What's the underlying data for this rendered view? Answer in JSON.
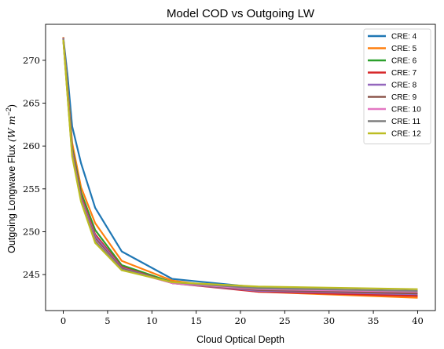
{
  "chart_data": {
    "type": "line",
    "title": "Model COD vs Outgoing LW",
    "xlabel": "Cloud Optical Depth",
    "ylabel": "Outgoing Longwave Flux (W m^-2)",
    "ylabel_unit": "(W m",
    "ylabel_exp": "−2",
    "ylabel_prefix": "Outgoing Longwave Flux ",
    "xlim": [
      -2,
      42
    ],
    "ylim": [
      240.8,
      274.2
    ],
    "xticks": [
      0,
      5,
      10,
      15,
      20,
      25,
      30,
      35,
      40
    ],
    "yticks": [
      245,
      250,
      255,
      260,
      265,
      270
    ],
    "grid": false,
    "legend_position": "top-right",
    "x": [
      0,
      0.5,
      1,
      2,
      3.6,
      6.6,
      12.3,
      22,
      40
    ],
    "series": [
      {
        "name": "CRE: 4",
        "color": "#1f77b4",
        "values": [
          272.7,
          268.0,
          262.3,
          258.0,
          252.8,
          247.7,
          244.5,
          243.5,
          243.0
        ]
      },
      {
        "name": "CRE: 5",
        "color": "#ff7f0e",
        "values": [
          272.7,
          266.6,
          260.4,
          255.2,
          251.0,
          246.6,
          244.3,
          243.0,
          242.3
        ]
      },
      {
        "name": "CRE: 6",
        "color": "#2ca02c",
        "values": [
          272.6,
          266.2,
          259.8,
          254.6,
          250.2,
          246.1,
          244.1,
          243.2,
          242.6
        ]
      },
      {
        "name": "CRE: 7",
        "color": "#d62728",
        "values": [
          272.6,
          266.0,
          259.5,
          254.2,
          249.7,
          245.9,
          244.0,
          243.0,
          242.5
        ]
      },
      {
        "name": "CRE: 8",
        "color": "#9467bd",
        "values": [
          272.6,
          265.9,
          259.4,
          254.0,
          249.5,
          245.8,
          244.0,
          243.1,
          242.7
        ]
      },
      {
        "name": "CRE: 9",
        "color": "#8c564b",
        "values": [
          272.5,
          265.8,
          259.2,
          253.9,
          249.2,
          245.7,
          244.0,
          243.2,
          242.8
        ]
      },
      {
        "name": "CRE: 10",
        "color": "#e377c2",
        "values": [
          272.5,
          265.7,
          259.1,
          253.8,
          249.0,
          245.6,
          244.0,
          243.3,
          243.0
        ]
      },
      {
        "name": "CRE: 11",
        "color": "#7f7f7f",
        "values": [
          272.5,
          265.6,
          259.0,
          253.7,
          248.9,
          245.6,
          244.1,
          243.4,
          243.1
        ]
      },
      {
        "name": "CRE: 12",
        "color": "#bcbd22",
        "values": [
          272.4,
          265.5,
          258.8,
          253.5,
          248.7,
          245.5,
          244.1,
          243.6,
          243.3
        ]
      }
    ]
  }
}
